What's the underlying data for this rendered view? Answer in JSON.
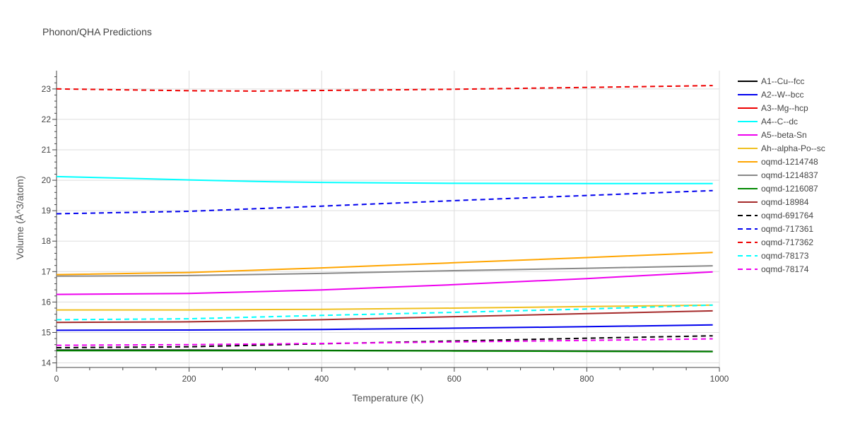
{
  "chart_data": {
    "type": "line",
    "title": "Phonon/QHA Predictions",
    "xlabel": "Temperature (K)",
    "ylabel": "Volume (Å^3/atom)",
    "xlim": [
      0,
      1000
    ],
    "ylim": [
      13.85,
      23.6
    ],
    "xticks": [
      0,
      200,
      400,
      600,
      800,
      1000
    ],
    "yticks": [
      14,
      15,
      16,
      17,
      18,
      19,
      20,
      21,
      22,
      23
    ],
    "grid": true,
    "legend_position": "right",
    "series": [
      {
        "name": "A1--Cu--fcc",
        "color": "#000000",
        "dash": "solid",
        "x": [
          0,
          200,
          400,
          600,
          800,
          990
        ],
        "y": [
          14.42,
          14.42,
          14.41,
          14.4,
          14.39,
          14.38
        ]
      },
      {
        "name": "A2--W--bcc",
        "color": "#0000ee",
        "dash": "solid",
        "x": [
          0,
          200,
          400,
          600,
          800,
          990
        ],
        "y": [
          15.07,
          15.08,
          15.1,
          15.14,
          15.19,
          15.25
        ]
      },
      {
        "name": "A3--Mg--hcp",
        "color": "#ee0000",
        "dash": "solid",
        "x": [],
        "y": []
      },
      {
        "name": "A4--C--dc",
        "color": "#00ffff",
        "dash": "solid",
        "x": [
          0,
          100,
          200,
          300,
          400,
          600,
          800,
          990
        ],
        "y": [
          20.12,
          20.07,
          20.01,
          19.96,
          19.93,
          19.9,
          19.89,
          19.89
        ]
      },
      {
        "name": "A5--beta-Sn",
        "color": "#ee00ee",
        "dash": "solid",
        "x": [
          0,
          200,
          400,
          600,
          800,
          990
        ],
        "y": [
          16.25,
          16.28,
          16.4,
          16.57,
          16.77,
          16.99
        ]
      },
      {
        "name": "Ah--alpha-Po--sc",
        "color": "#f0c020",
        "dash": "solid",
        "x": [
          0,
          200,
          400,
          600,
          800,
          990
        ],
        "y": [
          15.74,
          15.74,
          15.76,
          15.8,
          15.85,
          15.9
        ]
      },
      {
        "name": "oqmd-1214748",
        "color": "#ffa500",
        "dash": "solid",
        "x": [
          0,
          200,
          400,
          600,
          800,
          990
        ],
        "y": [
          16.9,
          16.97,
          17.12,
          17.29,
          17.46,
          17.63
        ]
      },
      {
        "name": "oqmd-1214837",
        "color": "#888888",
        "dash": "solid",
        "x": [
          0,
          200,
          400,
          600,
          800,
          990
        ],
        "y": [
          16.85,
          16.87,
          16.94,
          17.03,
          17.11,
          17.19
        ]
      },
      {
        "name": "oqmd-1216087",
        "color": "#008800",
        "dash": "solid",
        "x": [
          0,
          200,
          400,
          600,
          800,
          990
        ],
        "y": [
          14.4,
          14.4,
          14.4,
          14.39,
          14.38,
          14.37
        ]
      },
      {
        "name": "oqmd-18984",
        "color": "#a52a2a",
        "dash": "solid",
        "x": [
          0,
          200,
          400,
          600,
          800,
          990
        ],
        "y": [
          15.33,
          15.35,
          15.42,
          15.52,
          15.62,
          15.71
        ]
      },
      {
        "name": "oqmd-691764",
        "color": "#000000",
        "dash": "dash",
        "x": [
          0,
          200,
          400,
          600,
          800,
          990
        ],
        "y": [
          14.5,
          14.53,
          14.63,
          14.72,
          14.81,
          14.89
        ]
      },
      {
        "name": "oqmd-717361",
        "color": "#0000ee",
        "dash": "dash",
        "x": [
          0,
          200,
          400,
          600,
          800,
          990
        ],
        "y": [
          18.9,
          18.98,
          19.15,
          19.33,
          19.5,
          19.66
        ]
      },
      {
        "name": "oqmd-717362",
        "color": "#ee0000",
        "dash": "dash",
        "x": [
          0,
          200,
          300,
          400,
          600,
          800,
          990
        ],
        "y": [
          23.0,
          22.94,
          22.93,
          22.95,
          22.99,
          23.05,
          23.11
        ]
      },
      {
        "name": "oqmd-78173",
        "color": "#00ffff",
        "dash": "dash",
        "x": [
          0,
          200,
          400,
          600,
          800,
          990
        ],
        "y": [
          15.42,
          15.45,
          15.56,
          15.66,
          15.77,
          15.9
        ]
      },
      {
        "name": "oqmd-78174",
        "color": "#ee00ee",
        "dash": "dash",
        "x": [
          0,
          200,
          400,
          600,
          800,
          990
        ],
        "y": [
          14.58,
          14.6,
          14.64,
          14.69,
          14.74,
          14.79
        ]
      }
    ]
  }
}
